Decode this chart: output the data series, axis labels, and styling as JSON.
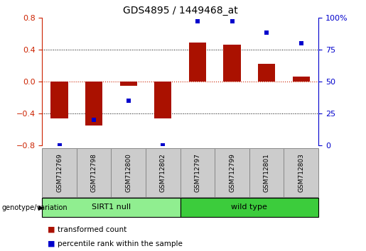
{
  "title": "GDS4895 / 1449468_at",
  "samples": [
    "GSM712769",
    "GSM712798",
    "GSM712800",
    "GSM712802",
    "GSM712797",
    "GSM712799",
    "GSM712801",
    "GSM712803"
  ],
  "transformed_count": [
    -0.46,
    -0.55,
    -0.055,
    -0.46,
    0.49,
    0.465,
    0.22,
    0.065
  ],
  "percentile_rank": [
    0.0,
    20.0,
    35.0,
    0.0,
    97.0,
    97.0,
    88.0,
    80.0
  ],
  "groups": [
    {
      "label": "SIRT1 null",
      "start": 0,
      "end": 4,
      "color": "#90ee90"
    },
    {
      "label": "wild type",
      "start": 4,
      "end": 8,
      "color": "#3ccc3c"
    }
  ],
  "ylim_left": [
    -0.8,
    0.8
  ],
  "ylim_right": [
    0,
    100
  ],
  "yticks_left": [
    -0.8,
    -0.4,
    0.0,
    0.4,
    0.8
  ],
  "yticks_right": [
    0,
    25,
    50,
    75,
    100
  ],
  "bar_color": "#aa1100",
  "dot_color": "#0000cc",
  "background_color": "#ffffff",
  "plot_bg_color": "#ffffff",
  "left_tick_color": "#cc2200",
  "right_tick_color": "#0000cc",
  "zero_line_color": "#cc2200",
  "legend_items": [
    "transformed count",
    "percentile rank within the sample"
  ],
  "genotype_label": "genotype/variation",
  "bar_width": 0.5,
  "sample_box_color": "#cccccc",
  "sample_box_edge": "#888888"
}
